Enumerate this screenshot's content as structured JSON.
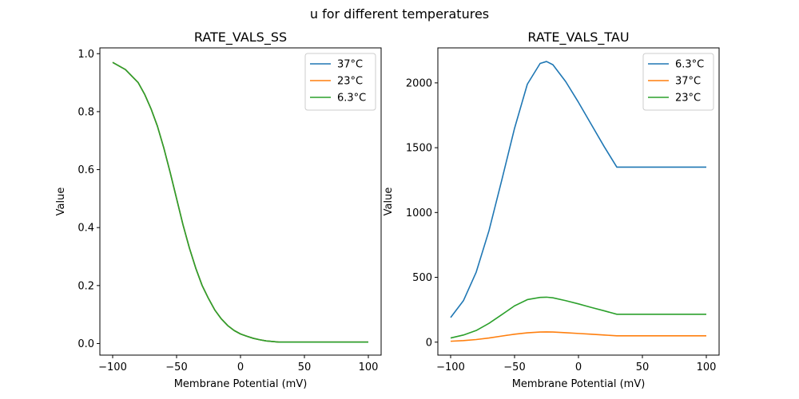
{
  "figure": {
    "title": "u for different temperatures"
  },
  "chart_data": [
    {
      "type": "line",
      "title": "RATE_VALS_SS",
      "xlabel": "Membrane Potential (mV)",
      "ylabel": "Value",
      "xlim": [
        -110,
        110
      ],
      "ylim": [
        -0.04,
        1.02
      ],
      "xticks": [
        -100,
        -50,
        0,
        50,
        100
      ],
      "yticks": [
        0.0,
        0.2,
        0.4,
        0.6,
        0.8,
        1.0
      ],
      "ytick_labels": [
        "0.0",
        "0.2",
        "0.4",
        "0.6",
        "0.8",
        "1.0"
      ],
      "grid": false,
      "legend_position": "top-right",
      "x": [
        -100,
        -90,
        -80,
        -75,
        -70,
        -65,
        -60,
        -55,
        -50,
        -45,
        -40,
        -35,
        -30,
        -25,
        -20,
        -15,
        -10,
        -5,
        0,
        5,
        10,
        15,
        20,
        25,
        30,
        40,
        50,
        60,
        70,
        80,
        90,
        100
      ],
      "series": [
        {
          "name": "37°C",
          "color": "#1f77b4",
          "values": [
            0.97,
            0.945,
            0.9,
            0.86,
            0.81,
            0.75,
            0.675,
            0.59,
            0.5,
            0.41,
            0.33,
            0.26,
            0.2,
            0.155,
            0.115,
            0.085,
            0.062,
            0.045,
            0.033,
            0.025,
            0.018,
            0.013,
            0.009,
            0.007,
            0.005,
            0.005,
            0.005,
            0.005,
            0.005,
            0.005,
            0.005,
            0.005
          ]
        },
        {
          "name": "23°C",
          "color": "#ff7f0e",
          "values": [
            0.97,
            0.945,
            0.9,
            0.86,
            0.81,
            0.75,
            0.675,
            0.59,
            0.5,
            0.41,
            0.33,
            0.26,
            0.2,
            0.155,
            0.115,
            0.085,
            0.062,
            0.045,
            0.033,
            0.025,
            0.018,
            0.013,
            0.009,
            0.007,
            0.005,
            0.005,
            0.005,
            0.005,
            0.005,
            0.005,
            0.005,
            0.005
          ]
        },
        {
          "name": "6.3°C",
          "color": "#2ca02c",
          "values": [
            0.97,
            0.945,
            0.9,
            0.86,
            0.81,
            0.75,
            0.675,
            0.59,
            0.5,
            0.41,
            0.33,
            0.26,
            0.2,
            0.155,
            0.115,
            0.085,
            0.062,
            0.045,
            0.033,
            0.025,
            0.018,
            0.013,
            0.009,
            0.007,
            0.005,
            0.005,
            0.005,
            0.005,
            0.005,
            0.005,
            0.005,
            0.005
          ]
        }
      ]
    },
    {
      "type": "line",
      "title": "RATE_VALS_TAU",
      "xlabel": "Membrane Potential (mV)",
      "ylabel": "Value",
      "xlim": [
        -110,
        110
      ],
      "ylim": [
        -100,
        2270
      ],
      "xticks": [
        -100,
        -50,
        0,
        50,
        100
      ],
      "yticks": [
        0,
        500,
        1000,
        1500,
        2000
      ],
      "ytick_labels": [
        "0",
        "500",
        "1000",
        "1500",
        "2000"
      ],
      "grid": false,
      "legend_position": "top-right",
      "x": [
        -100,
        -90,
        -80,
        -70,
        -60,
        -50,
        -40,
        -30,
        -25,
        -20,
        -10,
        0,
        10,
        20,
        30,
        40,
        50,
        60,
        70,
        80,
        90,
        100
      ],
      "series": [
        {
          "name": "6.3°C",
          "color": "#1f77b4",
          "values": [
            190,
            320,
            540,
            860,
            1250,
            1650,
            1990,
            2150,
            2165,
            2140,
            2010,
            1850,
            1680,
            1510,
            1350,
            1350,
            1350,
            1350,
            1350,
            1350,
            1350,
            1350
          ]
        },
        {
          "name": "37°C",
          "color": "#ff7f0e",
          "values": [
            7,
            12,
            20,
            32,
            47,
            61,
            72,
            78,
            79,
            78,
            73,
            67,
            61,
            55,
            49,
            49,
            49,
            49,
            49,
            49,
            49,
            49
          ]
        },
        {
          "name": "23°C",
          "color": "#2ca02c",
          "values": [
            32,
            55,
            90,
            145,
            212,
            280,
            328,
            345,
            347,
            342,
            320,
            295,
            268,
            242,
            215,
            215,
            215,
            215,
            215,
            215,
            215,
            215
          ]
        }
      ]
    }
  ]
}
